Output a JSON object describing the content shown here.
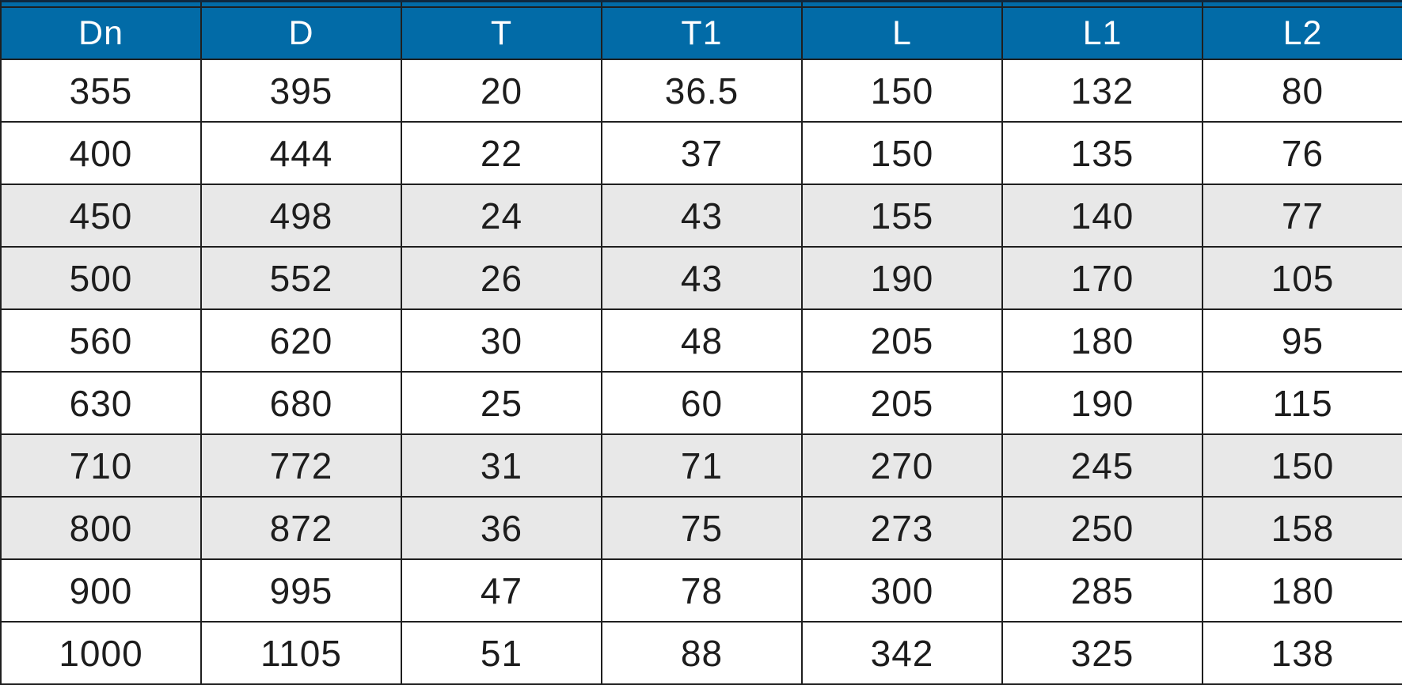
{
  "chart_data": {
    "type": "table",
    "title": "",
    "columns": [
      "Dn",
      "D",
      "T",
      "T1",
      "L",
      "L1",
      "L2"
    ],
    "rows": [
      [
        "355",
        "395",
        "20",
        "36.5",
        "150",
        "132",
        "80"
      ],
      [
        "400",
        "444",
        "22",
        "37",
        "150",
        "135",
        "76"
      ],
      [
        "450",
        "498",
        "24",
        "43",
        "155",
        "140",
        "77"
      ],
      [
        "500",
        "552",
        "26",
        "43",
        "190",
        "170",
        "105"
      ],
      [
        "560",
        "620",
        "30",
        "48",
        "205",
        "180",
        "95"
      ],
      [
        "630",
        "680",
        "25",
        "60",
        "205",
        "190",
        "115"
      ],
      [
        "710",
        "772",
        "31",
        "71",
        "270",
        "245",
        "150"
      ],
      [
        "800",
        "872",
        "36",
        "75",
        "273",
        "250",
        "158"
      ],
      [
        "900",
        "995",
        "47",
        "78",
        "300",
        "285",
        "180"
      ],
      [
        "1000",
        "1105",
        "51",
        "88",
        "342",
        "325",
        "138"
      ]
    ],
    "striped_row_indices": [
      2,
      3,
      6,
      7
    ],
    "layout_hints": {
      "grid": "on",
      "equal_column_widths": true,
      "header_position": "top"
    },
    "colors": {
      "header_bg": "#026ba7",
      "header_text": "#ffffff",
      "top_strip_bg": "#026ba7",
      "top_strip_edge": "#0d2840",
      "stripe_bg": "#e8e8e8",
      "row_bg": "#ffffff",
      "border": "#1f1f1f",
      "body_text": "#1d1d1d"
    }
  }
}
